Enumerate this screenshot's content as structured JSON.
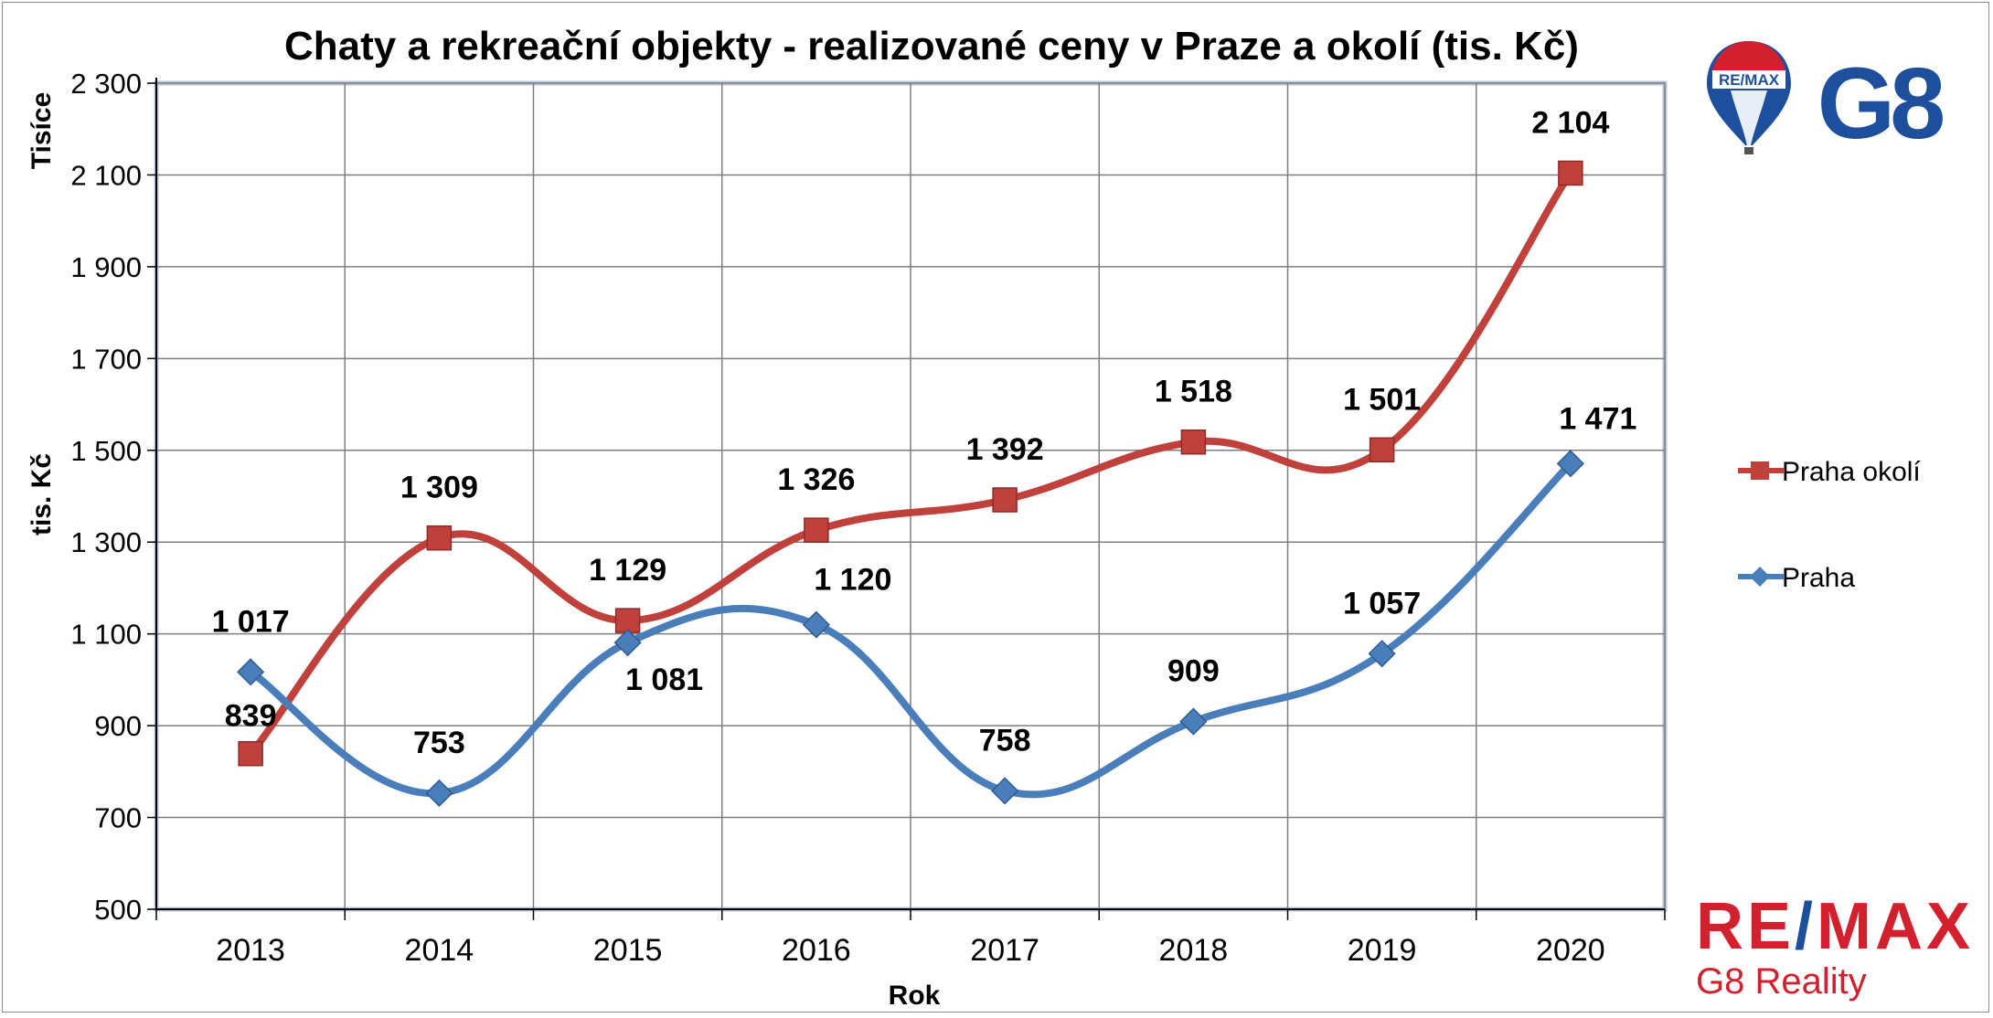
{
  "chart_data": {
    "type": "line",
    "title": "Chaty a rekreační objekty - realizované ceny v Praze a okolí (tis. Kč)",
    "xlabel": "Rok",
    "ylabel": "tis. Kč",
    "yunit_label": "Tisíce",
    "categories": [
      "2013",
      "2014",
      "2015",
      "2016",
      "2017",
      "2018",
      "2019",
      "2020"
    ],
    "ylim": [
      500,
      2300
    ],
    "yticks": [
      500,
      700,
      900,
      1100,
      1300,
      1500,
      1700,
      1900,
      2100,
      2300
    ],
    "ytick_labels": [
      "500",
      "700",
      "900",
      "1 100",
      "1 300",
      "1 500",
      "1 700",
      "1 900",
      "2 100",
      "2 300"
    ],
    "grid": true,
    "legend_position": "right",
    "series": [
      {
        "name": "Praha okolí",
        "color": "#c0403c",
        "marker": "square",
        "values": [
          839,
          1309,
          1129,
          1326,
          1392,
          1518,
          1501,
          2104
        ],
        "labels": [
          "839",
          "1 309",
          "1 129",
          "1 326",
          "1 392",
          "1 518",
          "1 501",
          "2 104"
        ]
      },
      {
        "name": "Praha",
        "color": "#4a7ebb",
        "marker": "diamond",
        "values": [
          1017,
          753,
          1081,
          1120,
          758,
          909,
          1057,
          1471
        ],
        "labels": [
          "1 017",
          "753",
          "1 081",
          "1 120",
          "758",
          "909",
          "1 057",
          "1 471"
        ]
      }
    ]
  },
  "branding": {
    "balloon_text": "RE/MAX",
    "g8_text": "G8",
    "brand_name_left": "RE",
    "brand_name_slash": "/",
    "brand_name_right": "MAX",
    "brand_sub": "G8 Reality",
    "colors": {
      "red": "#d2202e",
      "blue": "#1d4f9c"
    }
  }
}
